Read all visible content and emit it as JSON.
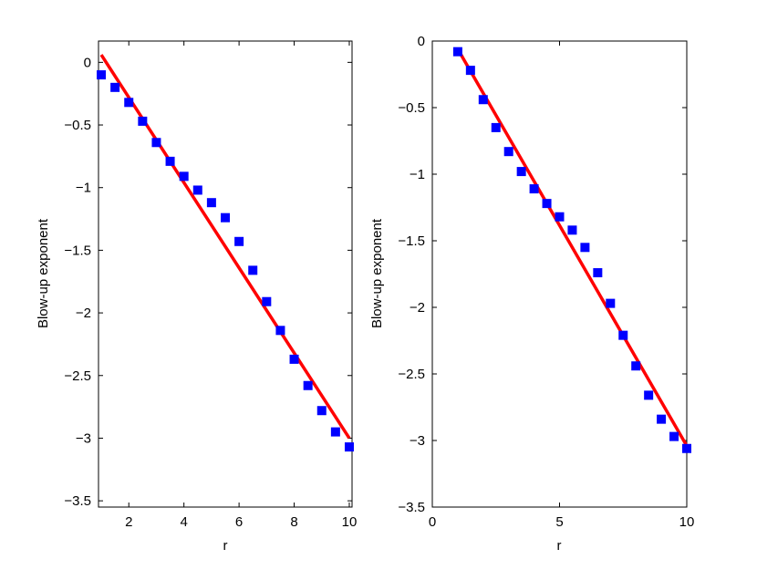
{
  "chart_data": [
    {
      "type": "scatter",
      "xlabel": "r",
      "ylabel": "Blow-up exponent",
      "xlim": [
        0.9,
        10.1
      ],
      "ylim": [
        -3.55,
        0.17
      ],
      "xticks": [
        2,
        4,
        6,
        8,
        10
      ],
      "xtick_labels": [
        "2",
        "4",
        "6",
        "8",
        "10"
      ],
      "yticks": [
        0,
        -0.5,
        -1,
        -1.5,
        -2,
        -2.5,
        -3,
        -3.5
      ],
      "ytick_labels": [
        "0",
        "−0.5",
        "−1",
        "−1.5",
        "−2",
        "−2.5",
        "−3",
        "−3.5"
      ],
      "grid": false,
      "series": [
        {
          "kind": "points",
          "marker": "square",
          "color": "#0000FF",
          "x": [
            1,
            1.5,
            2,
            2.5,
            3,
            3.5,
            4,
            4.5,
            5,
            5.5,
            6,
            6.5,
            7,
            7.5,
            8,
            8.5,
            9,
            9.5,
            10
          ],
          "y": [
            -0.1,
            -0.2,
            -0.32,
            -0.47,
            -0.64,
            -0.79,
            -0.91,
            -1.02,
            -1.12,
            -1.24,
            -1.43,
            -1.66,
            -1.91,
            -2.14,
            -2.37,
            -2.58,
            -2.78,
            -2.95,
            -3.07
          ]
        },
        {
          "kind": "line",
          "color": "#FF0000",
          "x": [
            1,
            10
          ],
          "y": [
            0.06,
            -3.0
          ]
        }
      ]
    },
    {
      "type": "scatter",
      "xlabel": "r",
      "ylabel": "Blow-up exponent",
      "xlim": [
        0,
        10
      ],
      "ylim": [
        -3.5,
        0
      ],
      "xticks": [
        0,
        5,
        10
      ],
      "xtick_labels": [
        "0",
        "5",
        "10"
      ],
      "yticks": [
        0,
        -0.5,
        -1,
        -1.5,
        -2,
        -2.5,
        -3,
        -3.5
      ],
      "ytick_labels": [
        "0",
        "−0.5",
        "−1",
        "−1.5",
        "−2",
        "−2.5",
        "−3",
        "−3.5"
      ],
      "grid": false,
      "series": [
        {
          "kind": "points",
          "marker": "square",
          "color": "#0000FF",
          "x": [
            1,
            1.5,
            2,
            2.5,
            3,
            3.5,
            4,
            4.5,
            5,
            5.5,
            6,
            6.5,
            7,
            7.5,
            8,
            8.5,
            9,
            9.5,
            10
          ],
          "y": [
            -0.08,
            -0.22,
            -0.44,
            -0.65,
            -0.83,
            -0.98,
            -1.11,
            -1.22,
            -1.32,
            -1.42,
            -1.55,
            -1.74,
            -1.97,
            -2.21,
            -2.44,
            -2.66,
            -2.84,
            -2.97,
            -3.06
          ]
        },
        {
          "kind": "line",
          "color": "#FF0000",
          "x": [
            1,
            10
          ],
          "y": [
            -0.06,
            -3.04
          ]
        }
      ]
    }
  ]
}
